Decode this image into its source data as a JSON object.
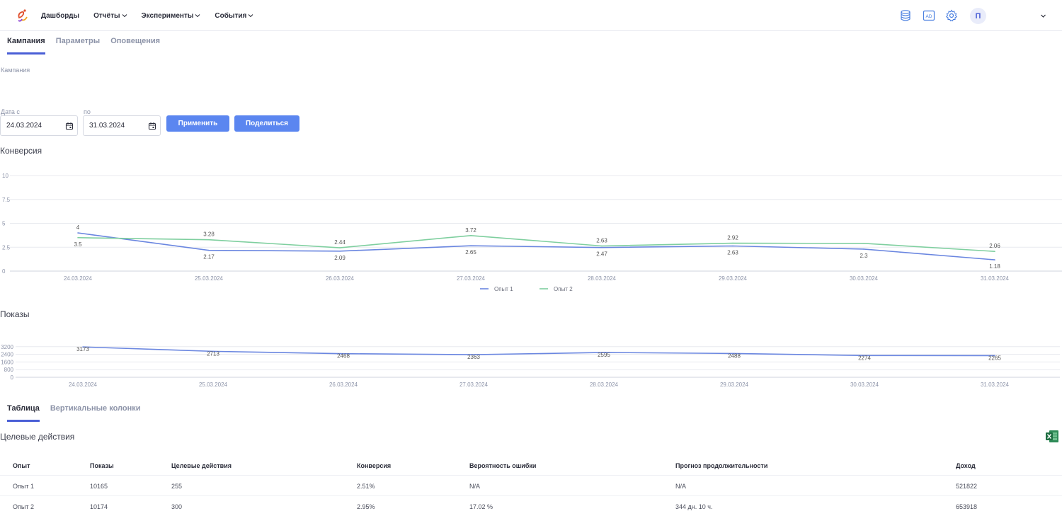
{
  "nav": {
    "items": [
      {
        "label": "Дашборды",
        "dropdown": false
      },
      {
        "label": "Отчёты",
        "dropdown": true
      },
      {
        "label": "Эксперименты",
        "dropdown": true
      },
      {
        "label": "События",
        "dropdown": true
      }
    ],
    "icons": [
      "database-icon",
      "ad-icon",
      "gear-icon"
    ],
    "avatar_letter": "П"
  },
  "tabs": [
    {
      "label": "Кампания",
      "active": true
    },
    {
      "label": "Параметры",
      "active": false
    },
    {
      "label": "Оповещения",
      "active": false
    }
  ],
  "campaign_label": "Кампания",
  "filters": {
    "from_label": "Дата с",
    "from_value": "24.03.2024",
    "to_label": "по",
    "to_value": "31.03.2024",
    "apply_label": "Применить",
    "share_label": "Поделиться"
  },
  "colors": {
    "accent": "#4a5fd6",
    "button": "#5b86f0",
    "series1": "#6a86e0",
    "series2": "#7fcf9f"
  },
  "chart_data": [
    {
      "type": "line",
      "title": "Конверсия",
      "x": [
        "24.03.2024",
        "25.03.2024",
        "26.03.2024",
        "27.03.2024",
        "28.03.2024",
        "29.03.2024",
        "30.03.2024",
        "31.03.2024"
      ],
      "yticks": [
        "0",
        "2.5",
        "5",
        "7.5",
        "10"
      ],
      "ylim": [
        0,
        10
      ],
      "grid": true,
      "legend": "bottom-center",
      "series": [
        {
          "name": "Опыт 1",
          "values": [
            4,
            2.17,
            2.09,
            2.65,
            2.47,
            2.63,
            2.3,
            1.18
          ]
        },
        {
          "name": "Опыт 2",
          "values": [
            3.5,
            3.28,
            2.44,
            3.72,
            2.63,
            2.92,
            2.9,
            2.06
          ]
        }
      ],
      "data_labels": {
        "s1": [
          "4",
          "2.17",
          "2.09",
          "2.65",
          "2.47",
          "2.63",
          "2.3",
          "1.18"
        ],
        "s2": [
          "3.5",
          "3.28",
          "2.44",
          "3.72",
          "2.63",
          "2.92",
          "",
          "2.06"
        ]
      }
    },
    {
      "type": "line",
      "title": "Показы",
      "x": [
        "24.03.2024",
        "25.03.2024",
        "26.03.2024",
        "27.03.2024",
        "28.03.2024",
        "29.03.2024",
        "30.03.2024",
        "31.03.2024"
      ],
      "yticks": [
        "0",
        "800",
        "1600",
        "2400",
        "3200"
      ],
      "ylim": [
        0,
        4000
      ],
      "grid": true,
      "series": [
        {
          "values": [
            3173,
            2713,
            2468,
            2363,
            2595,
            2488,
            2274,
            2265
          ]
        }
      ]
    }
  ],
  "tabs2": [
    {
      "label": "Таблица",
      "active": true
    },
    {
      "label": "Вертикальные колонки",
      "active": false
    }
  ],
  "table": {
    "title": "Целевые действия",
    "columns": [
      "Опыт",
      "Показы",
      "Целевые действия",
      "Конверсия",
      "Вероятность ошибки",
      "Прогноз продолжительности",
      "Доход"
    ],
    "rows": [
      [
        "Опыт 1",
        "10165",
        "255",
        "2.51%",
        "N/A",
        "N/A",
        "521822"
      ],
      [
        "Опыт 2",
        "10174",
        "300",
        "2.95%",
        "17.02 %",
        "344 дн. 10 ч.",
        "653918"
      ]
    ]
  }
}
